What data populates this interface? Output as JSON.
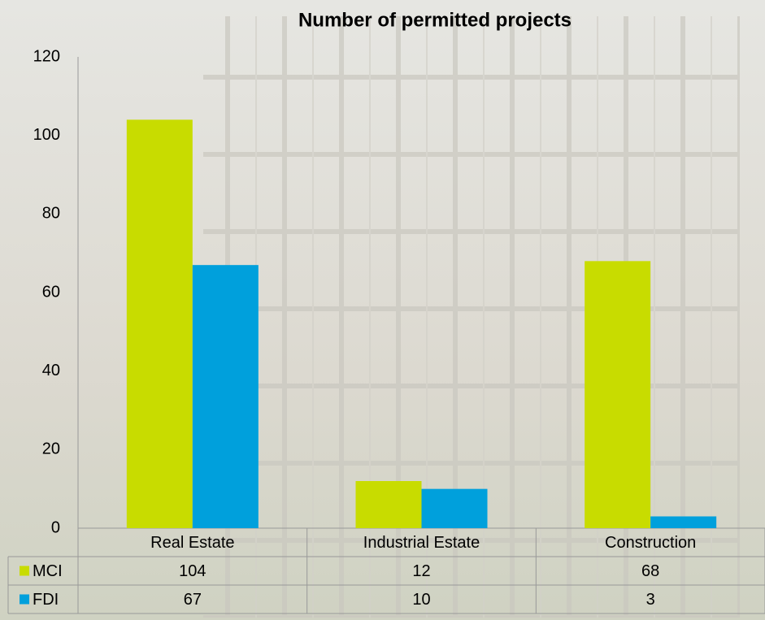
{
  "chart_data": {
    "type": "bar",
    "title": "Number of permitted projects",
    "categories": [
      "Real Estate",
      "Industrial Estate",
      "Construction"
    ],
    "series": [
      {
        "name": "MCI",
        "color": "#c8dc00",
        "values": [
          104,
          12,
          68
        ]
      },
      {
        "name": "FDI",
        "color": "#00a0dc",
        "values": [
          67,
          10,
          3
        ]
      }
    ],
    "ylim": [
      0,
      120
    ],
    "yticks": [
      0,
      20,
      40,
      60,
      80,
      100,
      120
    ],
    "grid": false,
    "legend": "table"
  }
}
